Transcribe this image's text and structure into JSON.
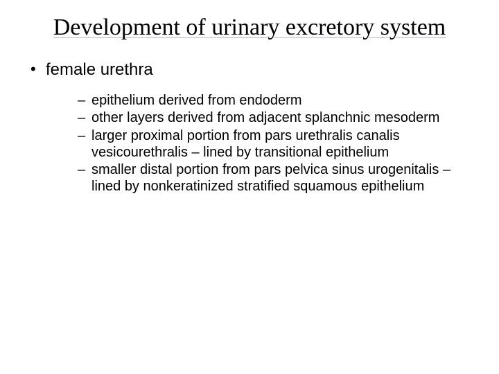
{
  "slide": {
    "title": "Development of urinary excretory system",
    "main_bullet": "female urethra",
    "sub_bullets": [
      "epithelium derived from endoderm",
      "other layers derived from adjacent splanchnic mesoderm",
      "larger proximal portion from pars urethralis canalis vesicourethralis – lined by transitional epithelium",
      "smaller distal portion from pars pelvica sinus urogenitalis – lined by nonkeratinized stratified squamous epithelium"
    ]
  },
  "style": {
    "background_color": "#ffffff",
    "title_color": "#000000",
    "title_fontsize": 34,
    "title_font_family": "Times New Roman",
    "title_underline_color": "#c0c0d0",
    "body_font_family": "Arial",
    "lvl1_fontsize": 24,
    "lvl2_fontsize": 20,
    "lvl1_marker": "•",
    "lvl2_marker": "–",
    "text_color": "#000000"
  }
}
